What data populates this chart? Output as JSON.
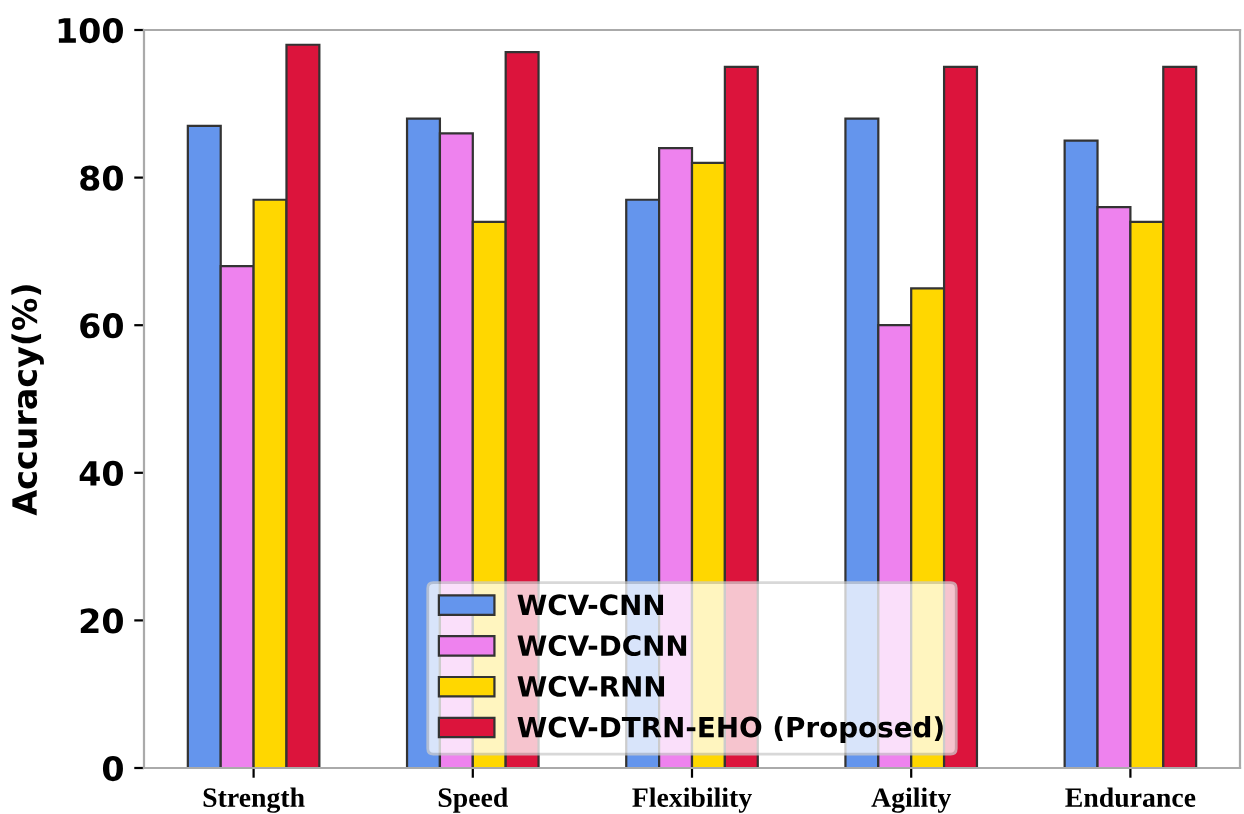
{
  "chart_data": {
    "type": "bar",
    "ylabel": "Accuracy(%)",
    "categories": [
      "Strength",
      "Speed",
      "Flexibility",
      "Agility",
      "Endurance"
    ],
    "series": [
      {
        "name": "WCV-CNN",
        "color": "#6495ed",
        "values": [
          87,
          88,
          77,
          88,
          85
        ]
      },
      {
        "name": "WCV-DCNN",
        "color": "#ee82ee",
        "values": [
          68,
          86,
          84,
          60,
          76
        ]
      },
      {
        "name": "WCV-RNN",
        "color": "#ffd700",
        "values": [
          77,
          74,
          82,
          65,
          74
        ]
      },
      {
        "name": "WCV-DTRN-EHO (Proposed)",
        "color": "#dc143c",
        "values": [
          98,
          97,
          95,
          95,
          95
        ]
      }
    ],
    "ylim": [
      0,
      100
    ],
    "yticks": [
      0,
      20,
      40,
      60,
      80,
      100
    ],
    "grid": false,
    "legend": "bottom"
  }
}
